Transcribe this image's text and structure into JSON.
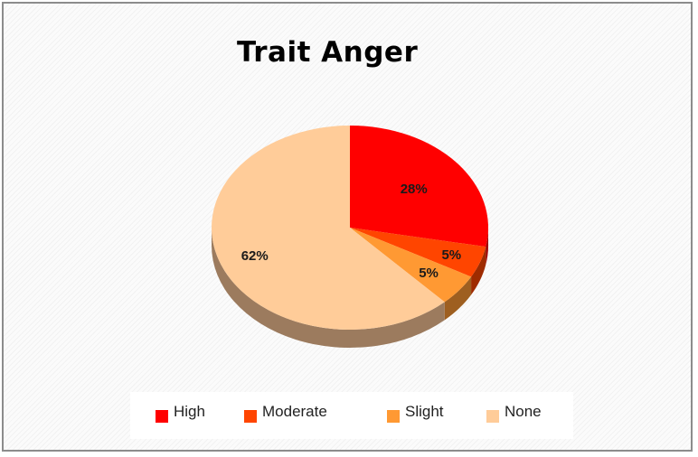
{
  "chart_data": {
    "type": "pie",
    "title": "Trait Anger",
    "categories": [
      "High",
      "Moderate",
      "Slight",
      "None"
    ],
    "values": [
      28,
      5,
      5,
      62
    ],
    "data_labels": [
      "28%",
      "5%",
      "5%",
      "62%"
    ],
    "colors": [
      "#ff0000",
      "#ff4500",
      "#ff9933",
      "#ffcc99"
    ],
    "legend_position": "bottom",
    "style": "3d"
  }
}
